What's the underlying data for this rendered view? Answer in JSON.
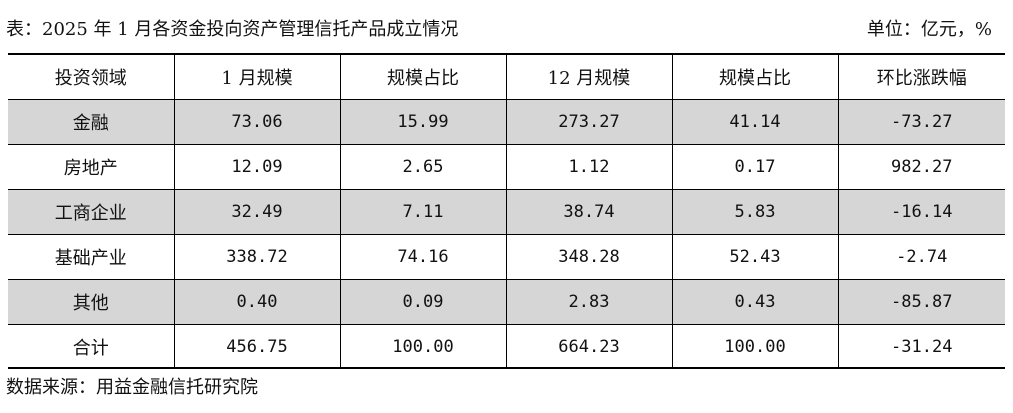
{
  "caption": {
    "title": "表：2025 年 1 月各资金投向资产管理信托产品成立情况",
    "unit": "单位：亿元，%"
  },
  "table": {
    "headers": [
      "投资领域",
      "1 月规模",
      "规模占比",
      "12 月规模",
      "规模占比",
      "环比涨跌幅"
    ],
    "rows": [
      [
        "金融",
        "73.06",
        "15.99",
        "273.27",
        "41.14",
        "-73.27"
      ],
      [
        "房地产",
        "12.09",
        "2.65",
        "1.12",
        "0.17",
        "982.27"
      ],
      [
        "工商企业",
        "32.49",
        "7.11",
        "38.74",
        "5.83",
        "-16.14"
      ],
      [
        "基础产业",
        "338.72",
        "74.16",
        "348.28",
        "52.43",
        "-2.74"
      ],
      [
        "其他",
        "0.40",
        "0.09",
        "2.83",
        "0.43",
        "-85.87"
      ],
      [
        "合计",
        "456.75",
        "100.00",
        "664.23",
        "100.00",
        "-31.24"
      ]
    ],
    "shaded_row_color": "#d6d6d6"
  },
  "source": "数据来源：用益金融信托研究院"
}
